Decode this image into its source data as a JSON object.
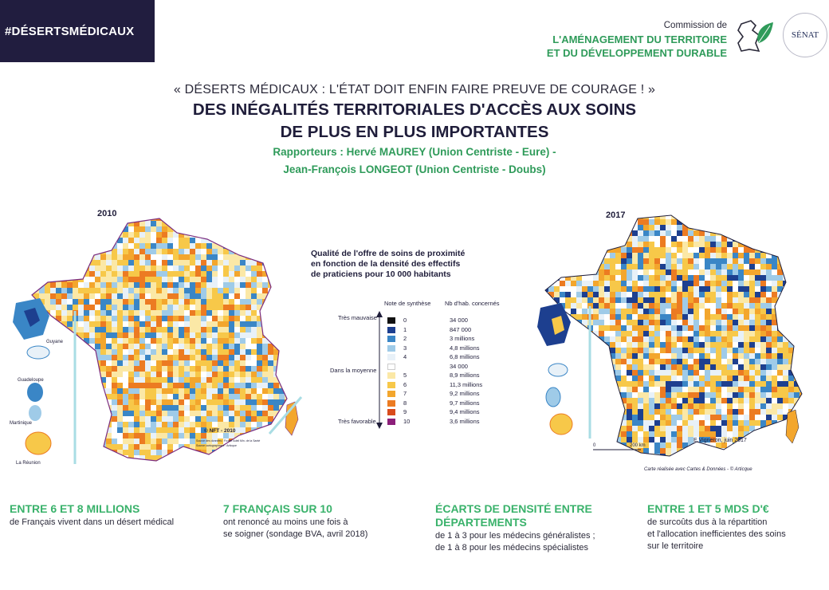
{
  "header": {
    "hashtag": "#DÉSERTSMÉDICAUX",
    "commission_line1": "Commission de",
    "commission_line2": "L'AMÉNAGEMENT DU TERRITOIRE",
    "commission_line3": "ET DU DÉVELOPPEMENT DURABLE",
    "senat_logo_text": "SÉNAT"
  },
  "titles": {
    "quote": "« DÉSERTS MÉDICAUX : L'ÉTAT DOIT ENFIN FAIRE PREUVE DE COURAGE ! »",
    "main_line1": "DES INÉGALITÉS TERRITORIALES D'ACCÈS AUX SOINS",
    "main_line2": "DE PLUS EN PLUS IMPORTANTES",
    "rapporteurs_line1": "Rapporteurs : Hervé MAUREY (Union Centriste - Eure) -",
    "rapporteurs_line2": "Jean-François LONGEOT (Union Centriste - Doubs)"
  },
  "map_left": {
    "year": "2010",
    "labels": [
      "Guyane",
      "Guadeloupe",
      "Martinique",
      "La Réunion"
    ],
    "credit": "© NFT - 2010",
    "source": "Source des données : Fichier Adeli Min. de la Santé",
    "source2": "Source cartographique : Articque"
  },
  "map_right": {
    "year": "2017",
    "scale_0": "0",
    "scale_200": "200 km",
    "credit": "E.Vigneron, juin 2017",
    "source": "Carte réalisée avec Cartes & Données - © Articque"
  },
  "legend": {
    "title_line1": "Qualité de l'offre de soins de proximité",
    "title_line2": "en fonction de la densité des effectifs",
    "title_line3": "de praticiens pour 10 000 habitants",
    "col_note": "Note de synthèse",
    "col_hab": "Nb d'hab. concernés",
    "label_bad": "Très mauvaise",
    "label_mid": "Dans la moyenne",
    "label_good": "Très favorable",
    "rows": [
      {
        "note": "0",
        "hab": "34 000",
        "color": "#111111"
      },
      {
        "note": "1",
        "hab": "847 000",
        "color": "#1d3f8f"
      },
      {
        "note": "2",
        "hab": "3 millions",
        "color": "#3a86c6"
      },
      {
        "note": "3",
        "hab": "4,8 millions",
        "color": "#9fcbe8"
      },
      {
        "note": "4",
        "hab": "6,8 millions",
        "color": "#e8f1f8"
      },
      {
        "note": "",
        "hab": "34 000",
        "color": "#ffffff"
      },
      {
        "note": "5",
        "hab": "8,9 millions",
        "color": "#fbe8a6"
      },
      {
        "note": "6",
        "hab": "11,3 millions",
        "color": "#f7c849"
      },
      {
        "note": "7",
        "hab": "9,2 millions",
        "color": "#f3a62d"
      },
      {
        "note": "8",
        "hab": "9,7 millions",
        "color": "#ec7b22"
      },
      {
        "note": "9",
        "hab": "9,4 millions",
        "color": "#d94b1c"
      },
      {
        "note": "10",
        "hab": "3,6 millions",
        "color": "#8c1f7a"
      }
    ]
  },
  "stats": [
    {
      "head1": "ENTRE 6 ET 8 MILLIONS",
      "head2": "",
      "text1": "de Français vivent dans un désert médical",
      "text2": ""
    },
    {
      "head1": "7 FRANÇAIS SUR 10",
      "head2": "",
      "text1": "ont renoncé au moins une fois à",
      "text2": "se soigner (sondage BVA, avril 2018)"
    },
    {
      "head1": "ÉCARTS DE DENSITÉ ENTRE",
      "head2": "DÉPARTEMENTS",
      "text1": "de 1 à 3 pour les médecins généralistes ;",
      "text2": "de 1 à 8 pour les médecins spécialistes"
    },
    {
      "head1": "ENTRE 1 ET 5 MDS D'€",
      "head2": "",
      "text1": "de surcoûts dus à la répartition",
      "text2": "et l'allocation inefficientes des soins",
      "text3": "sur le territoire"
    }
  ],
  "colors": {
    "navy": "#211d3f",
    "green": "#2f9b5a",
    "stat_green": "#3ab26b"
  }
}
